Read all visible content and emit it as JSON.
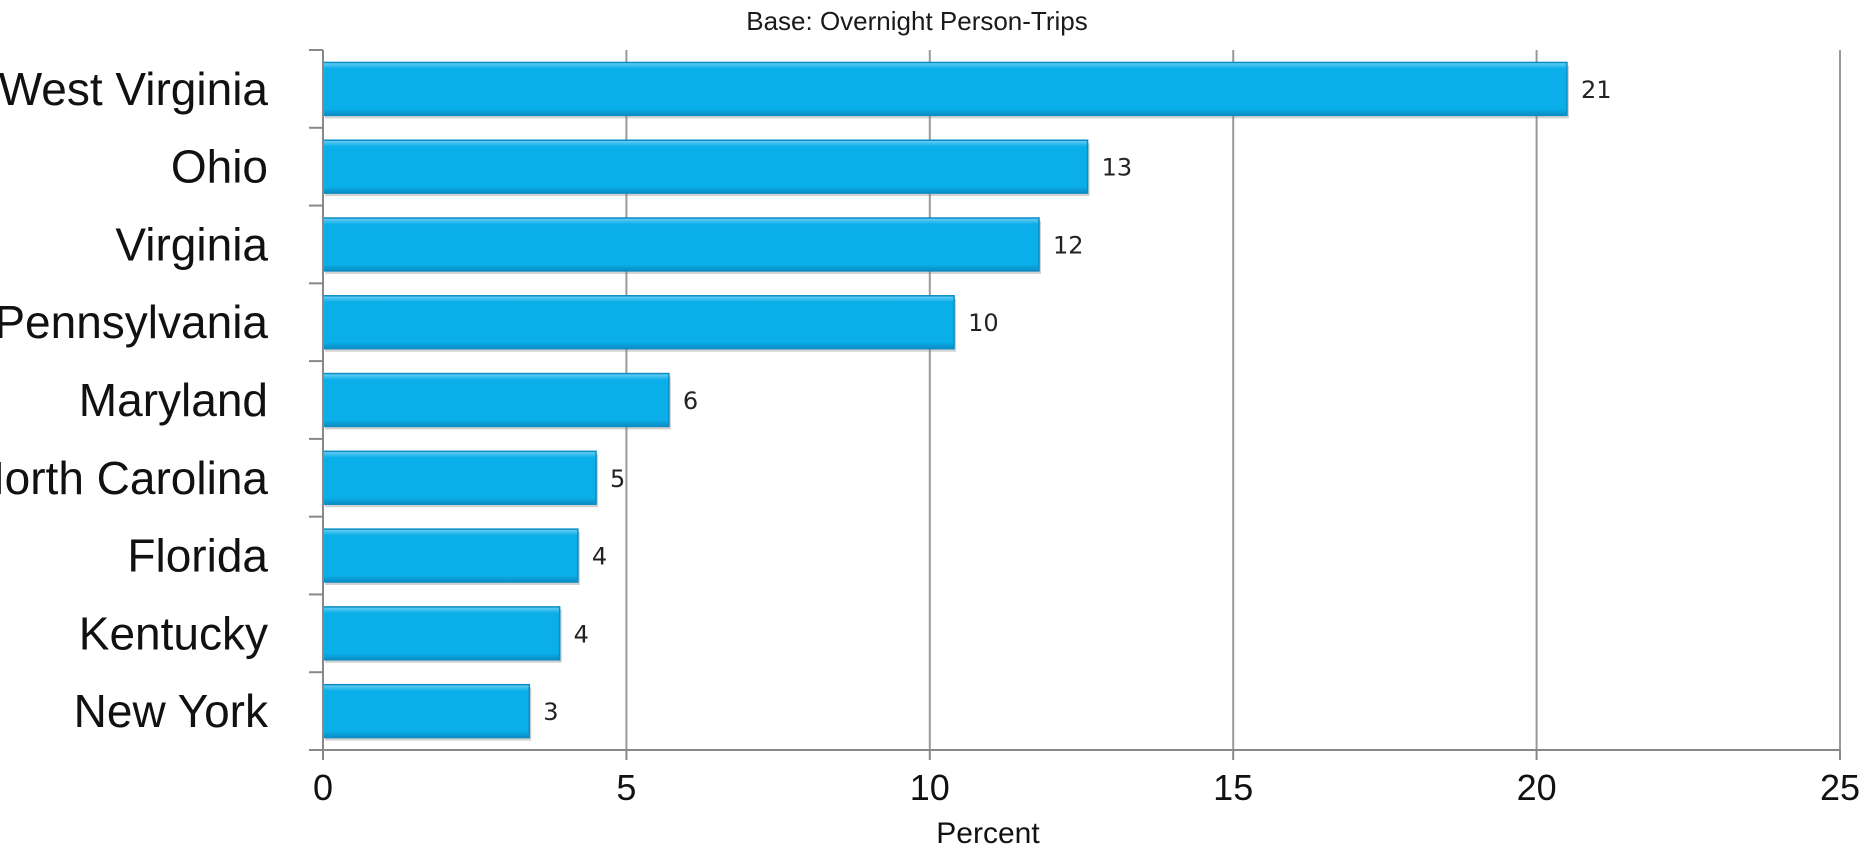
{
  "chart_data": {
    "type": "bar",
    "orientation": "horizontal",
    "title": "Base: Overnight Person-Trips",
    "xlabel": "Percent",
    "ylabel": "",
    "categories": [
      "West Virginia",
      "Ohio",
      "Virginia",
      "Pennsylvania",
      "Maryland",
      "North Carolina",
      "Florida",
      "Kentucky",
      "New York"
    ],
    "values": [
      20.5,
      12.6,
      11.8,
      10.4,
      5.7,
      4.5,
      4.2,
      3.9,
      3.4
    ],
    "value_labels": [
      "21",
      "13",
      "12",
      "10",
      "6",
      "5",
      "4",
      "4",
      "3"
    ],
    "xlim": [
      0,
      25
    ],
    "xticks": [
      "0",
      "5",
      "10",
      "15",
      "20",
      "25"
    ],
    "grid": true,
    "legend": "none",
    "colors": {
      "bar": "#0aaee8",
      "bar_edge": "#0a8cc4",
      "bar_highlight": "#6fd0f5"
    }
  }
}
